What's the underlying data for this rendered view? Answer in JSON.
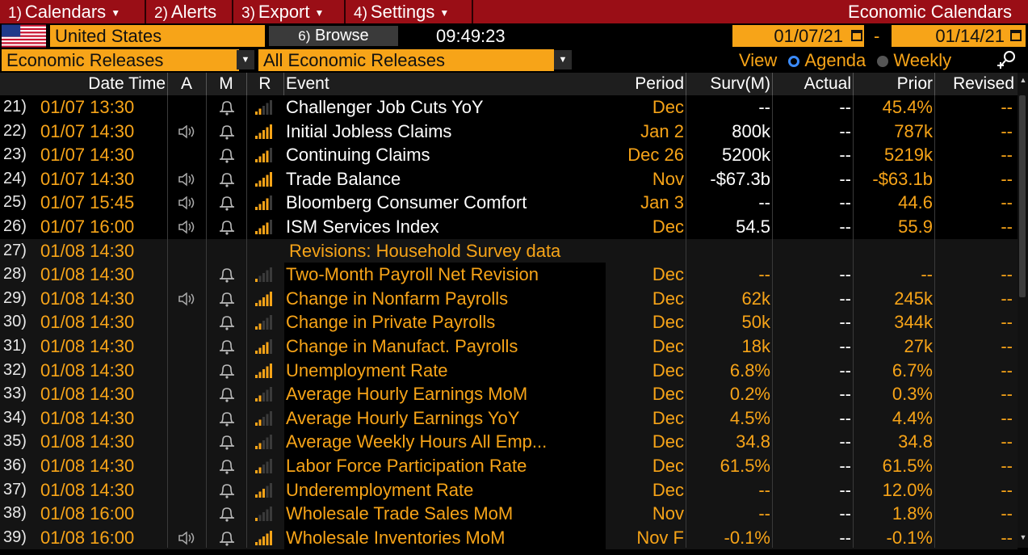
{
  "menu": {
    "items": [
      {
        "num": "1)",
        "label": "Calendars",
        "has_caret": true
      },
      {
        "num": "2)",
        "label": "Alerts",
        "has_caret": false
      },
      {
        "num": "3)",
        "label": "Export",
        "has_caret": true
      },
      {
        "num": "4)",
        "label": "Settings",
        "has_caret": true
      }
    ],
    "title": "Economic Calendars"
  },
  "toolbar": {
    "country": "United States",
    "browse_num": "6)",
    "browse_label": "Browse",
    "time": "09:49:23",
    "date_from": "01/07/21",
    "date_sep": "-",
    "date_to": "01/14/21"
  },
  "filters": {
    "category": "Economic Releases",
    "subcategory": "All Economic Releases",
    "view_label": "View",
    "view_options": [
      "Agenda",
      "Weekly"
    ],
    "view_selected": "Agenda"
  },
  "table": {
    "headers": {
      "datetime": "Date Time",
      "a": "A",
      "m": "M",
      "r": "R",
      "event": "Event",
      "period": "Period",
      "surv": "Surv(M)",
      "actual": "Actual",
      "prior": "Prior",
      "revised": "Revised"
    },
    "rows": [
      {
        "num": "21)",
        "date": "01/07 13:30",
        "alert": false,
        "bars": 2,
        "event": "Challenger Job Cuts YoY",
        "period": "Dec",
        "surv": "--",
        "actual": "--",
        "prior": "45.4%",
        "revised": "--",
        "style": "dark"
      },
      {
        "num": "22)",
        "date": "01/07 14:30",
        "alert": true,
        "bars": 5,
        "event": "Initial Jobless Claims",
        "period": "Jan 2",
        "surv": "800k",
        "actual": "--",
        "prior": "787k",
        "revised": "--",
        "style": "dark"
      },
      {
        "num": "23)",
        "date": "01/07 14:30",
        "alert": false,
        "bars": 4,
        "event": "Continuing Claims",
        "period": "Dec 26",
        "surv": "5200k",
        "actual": "--",
        "prior": "5219k",
        "revised": "--",
        "style": "dark"
      },
      {
        "num": "24)",
        "date": "01/07 14:30",
        "alert": true,
        "bars": 5,
        "event": "Trade Balance",
        "period": "Nov",
        "surv": "-$67.3b",
        "actual": "--",
        "prior": "-$63.1b",
        "revised": "--",
        "style": "dark"
      },
      {
        "num": "25)",
        "date": "01/07 15:45",
        "alert": true,
        "bars": 4,
        "event": "Bloomberg Consumer Comfort",
        "period": "Jan 3",
        "surv": "--",
        "actual": "--",
        "prior": "44.6",
        "revised": "--",
        "style": "dark"
      },
      {
        "num": "26)",
        "date": "01/07 16:00",
        "alert": true,
        "bars": 4,
        "event": "ISM Services Index",
        "period": "Dec",
        "surv": "54.5",
        "actual": "--",
        "prior": "55.9",
        "revised": "--",
        "style": "dark"
      },
      {
        "num": "27)",
        "date": "01/08 14:30",
        "alert": false,
        "bars": 0,
        "event": "Revisions: Household Survey data",
        "period": "",
        "surv": "",
        "actual": "",
        "prior": "",
        "revised": "",
        "style": "section"
      },
      {
        "num": "28)",
        "date": "01/08 14:30",
        "alert": false,
        "bars": 1,
        "event": "Two-Month Payroll Net Revision",
        "period": "Dec",
        "surv": "--",
        "actual": "--",
        "prior": "--",
        "revised": "--",
        "style": "gray"
      },
      {
        "num": "29)",
        "date": "01/08 14:30",
        "alert": true,
        "bars": 5,
        "event": "Change in Nonfarm Payrolls",
        "period": "Dec",
        "surv": "62k",
        "actual": "--",
        "prior": "245k",
        "revised": "--",
        "style": "gray"
      },
      {
        "num": "30)",
        "date": "01/08 14:30",
        "alert": false,
        "bars": 2,
        "event": "Change in Private Payrolls",
        "period": "Dec",
        "surv": "50k",
        "actual": "--",
        "prior": "344k",
        "revised": "--",
        "style": "gray"
      },
      {
        "num": "31)",
        "date": "01/08 14:30",
        "alert": false,
        "bars": 4,
        "event": "Change in Manufact. Payrolls",
        "period": "Dec",
        "surv": "18k",
        "actual": "--",
        "prior": "27k",
        "revised": "--",
        "style": "gray"
      },
      {
        "num": "32)",
        "date": "01/08 14:30",
        "alert": false,
        "bars": 5,
        "event": "Unemployment Rate",
        "period": "Dec",
        "surv": "6.8%",
        "actual": "--",
        "prior": "6.7%",
        "revised": "--",
        "style": "gray"
      },
      {
        "num": "33)",
        "date": "01/08 14:30",
        "alert": false,
        "bars": 2,
        "event": "Average Hourly Earnings MoM",
        "period": "Dec",
        "surv": "0.2%",
        "actual": "--",
        "prior": "0.3%",
        "revised": "--",
        "style": "gray"
      },
      {
        "num": "34)",
        "date": "01/08 14:30",
        "alert": false,
        "bars": 2,
        "event": "Average Hourly Earnings YoY",
        "period": "Dec",
        "surv": "4.5%",
        "actual": "--",
        "prior": "4.4%",
        "revised": "--",
        "style": "gray"
      },
      {
        "num": "35)",
        "date": "01/08 14:30",
        "alert": false,
        "bars": 2,
        "event": "Average Weekly Hours All Emp...",
        "period": "Dec",
        "surv": "34.8",
        "actual": "--",
        "prior": "34.8",
        "revised": "--",
        "style": "gray"
      },
      {
        "num": "36)",
        "date": "01/08 14:30",
        "alert": false,
        "bars": 2,
        "event": "Labor Force Participation Rate",
        "period": "Dec",
        "surv": "61.5%",
        "actual": "--",
        "prior": "61.5%",
        "revised": "--",
        "style": "gray"
      },
      {
        "num": "37)",
        "date": "01/08 14:30",
        "alert": false,
        "bars": 3,
        "event": "Underemployment Rate",
        "period": "Dec",
        "surv": "--",
        "actual": "--",
        "prior": "12.0%",
        "revised": "--",
        "style": "gray"
      },
      {
        "num": "38)",
        "date": "01/08 16:00",
        "alert": false,
        "bars": 1,
        "event": "Wholesale Trade Sales MoM",
        "period": "Nov",
        "surv": "--",
        "actual": "--",
        "prior": "1.8%",
        "revised": "--",
        "style": "gray"
      },
      {
        "num": "39)",
        "date": "01/08 16:00",
        "alert": true,
        "bars": 5,
        "event": "Wholesale Inventories MoM",
        "period": "Nov F",
        "surv": "-0.1%",
        "actual": "--",
        "prior": "-0.1%",
        "revised": "--",
        "style": "gray"
      }
    ]
  },
  "colors": {
    "menu_bg": "#9a0e16",
    "accent": "#f7a418",
    "white_text": "#ffffff",
    "bar_on": "#f7a418",
    "bar_off": "#3a3a3a"
  },
  "icons": {
    "flag": "us-flag-icon",
    "alert": "speaker-icon",
    "monitor": "bell-icon",
    "relevance": "signal-bars-icon",
    "calendar": "calendar-icon",
    "search": "search-plus-icon"
  }
}
